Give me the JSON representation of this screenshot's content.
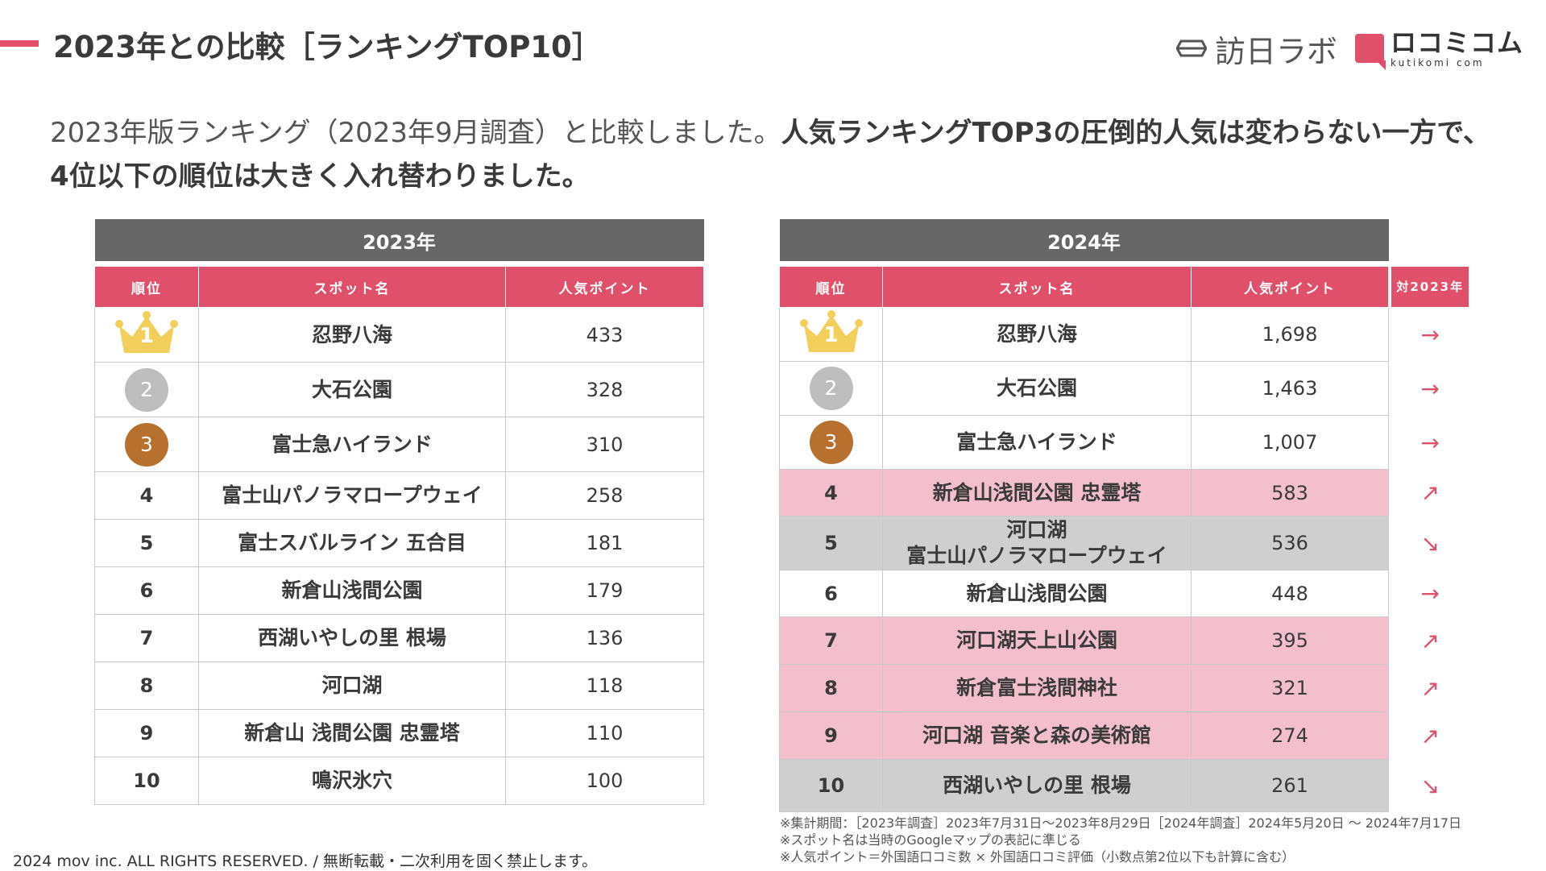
{
  "header": {
    "title": "2023年との比較［ランキングTOP10］",
    "logo_houjin": "訪日ラボ",
    "logo_kutikomi": "ロコミコム",
    "logo_kutikomi_url": "kutikomi com"
  },
  "lead": {
    "normal": "2023年版ランキング（2023年9月調査）と比較しました。",
    "bold": "人気ランキングTOP3の圧倒的人気は変わらない一方で、4位以下の順位は大きく入れ替わりました。"
  },
  "columns": {
    "rank": "順位",
    "spot": "スポット名",
    "points": "人気ポイント",
    "vs": "対2023年"
  },
  "table_2023": {
    "year": "2023年",
    "rows": [
      {
        "rank": "1",
        "name": "忍野八海",
        "points": "433"
      },
      {
        "rank": "2",
        "name": "大石公園",
        "points": "328"
      },
      {
        "rank": "3",
        "name": "富士急ハイランド",
        "points": "310"
      },
      {
        "rank": "4",
        "name": "富士山パノラマロープウェイ",
        "points": "258"
      },
      {
        "rank": "5",
        "name": "富士スバルライン 五合目",
        "points": "181"
      },
      {
        "rank": "6",
        "name": "新倉山浅間公園",
        "points": "179"
      },
      {
        "rank": "7",
        "name": "西湖いやしの里 根場",
        "points": "136"
      },
      {
        "rank": "8",
        "name": "河口湖",
        "points": "118"
      },
      {
        "rank": "9",
        "name": "新倉山 浅間公園 忠霊塔",
        "points": "110"
      },
      {
        "rank": "10",
        "name": "鳴沢氷穴",
        "points": "100"
      }
    ]
  },
  "table_2024": {
    "year": "2024年",
    "rows": [
      {
        "rank": "1",
        "name": "忍野八海",
        "name2": "",
        "points": "1,698",
        "trend": "→",
        "highlight": "none"
      },
      {
        "rank": "2",
        "name": "大石公園",
        "name2": "",
        "points": "1,463",
        "trend": "→",
        "highlight": "none"
      },
      {
        "rank": "3",
        "name": "富士急ハイランド",
        "name2": "",
        "points": "1,007",
        "trend": "→",
        "highlight": "none"
      },
      {
        "rank": "4",
        "name": "新倉山浅間公園 忠霊塔",
        "name2": "",
        "points": "583",
        "trend": "↗",
        "highlight": "pink"
      },
      {
        "rank": "5",
        "name": "河口湖",
        "name2": "富士山パノラマロープウェイ",
        "points": "536",
        "trend": "↘",
        "highlight": "gray"
      },
      {
        "rank": "6",
        "name": "新倉山浅間公園",
        "name2": "",
        "points": "448",
        "trend": "→",
        "highlight": "none"
      },
      {
        "rank": "7",
        "name": "河口湖天上山公園",
        "name2": "",
        "points": "395",
        "trend": "↗",
        "highlight": "pink"
      },
      {
        "rank": "8",
        "name": "新倉富士浅間神社",
        "name2": "",
        "points": "321",
        "trend": "↗",
        "highlight": "pink"
      },
      {
        "rank": "9",
        "name": "河口湖 音楽と森の美術館",
        "name2": "",
        "points": "274",
        "trend": "↗",
        "highlight": "pink"
      },
      {
        "rank": "10",
        "name": "西湖いやしの里 根場",
        "name2": "",
        "points": "261",
        "trend": "↘",
        "highlight": "gray"
      }
    ]
  },
  "notes": [
    "※集計期間：［2023年調査］2023年7月31日〜2023年8月29日［2024年調査］2024年5月20日 〜 2024年7月17日",
    "※スポット名は当時のGoogleマップの表記に準じる",
    "※人気ポイント＝外国語口コミ数 × 外国語口コミ評価（小数点第2位以下も計算に含む）"
  ],
  "footer": "2024 mov inc. ALL RIGHTS RESERVED. / 無断転載・二次利用を固く禁止します。",
  "colors": {
    "accent": "#e0506a",
    "year_header": "#666666",
    "highlight_pink": "#f4bfcc",
    "highlight_gray": "#cfcfcf",
    "gold": "#f2cf5b",
    "silver": "#bdbdbd",
    "bronze": "#b8702f"
  }
}
